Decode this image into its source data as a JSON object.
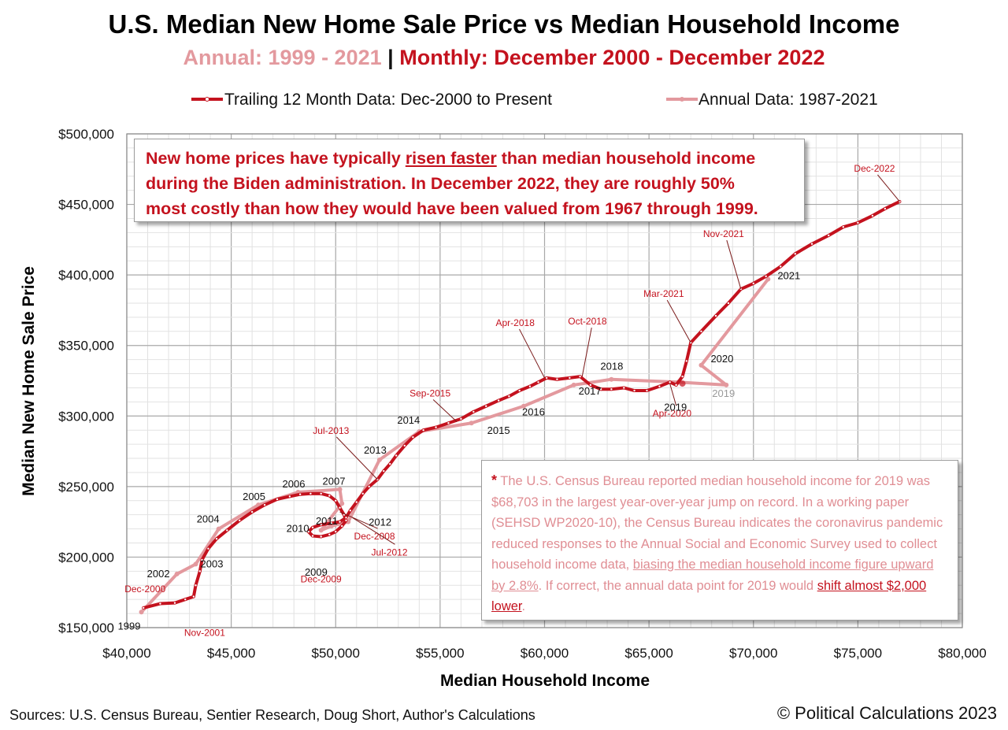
{
  "chart_data": {
    "type": "line",
    "title": "U.S. Median New Home Sale Price vs Median Household Income",
    "subtitle": {
      "annual": "Annual: 1999 - 2021",
      "separator": "|",
      "monthly": "Monthly: December 2000 - December 2022"
    },
    "xlabel": "Median Household Income",
    "ylabel": "Median New Home Sale Price",
    "xlim": [
      40000,
      80000
    ],
    "ylim": [
      150000,
      500000
    ],
    "x_ticks": [
      "$40,000",
      "$45,000",
      "$50,000",
      "$55,000",
      "$60,000",
      "$65,000",
      "$70,000",
      "$75,000",
      "$80,000"
    ],
    "y_ticks": [
      "$150,000",
      "$200,000",
      "$250,000",
      "$300,000",
      "$350,000",
      "$400,000",
      "$450,000",
      "$500,000"
    ],
    "grid": true,
    "legend_position": "top-center",
    "colors": {
      "monthly": "#c4121e",
      "annual": "#e3999e",
      "grid": "#c8c8c8"
    },
    "series": [
      {
        "name": "Trailing 12 Month Data: Dec-2000 to Present",
        "points": [
          [
            40800,
            164000
          ],
          [
            41600,
            167000
          ],
          [
            42300,
            167500
          ],
          [
            42800,
            170000
          ],
          [
            43200,
            172000
          ],
          [
            43300,
            180000
          ],
          [
            43500,
            190000
          ],
          [
            43600,
            198000
          ],
          [
            43900,
            206000
          ],
          [
            44300,
            213000
          ],
          [
            44800,
            219000
          ],
          [
            45400,
            226000
          ],
          [
            46000,
            232000
          ],
          [
            46600,
            237000
          ],
          [
            47200,
            241000
          ],
          [
            47800,
            243000
          ],
          [
            48300,
            244500
          ],
          [
            48800,
            245000
          ],
          [
            49300,
            245000
          ],
          [
            49700,
            243500
          ],
          [
            50000,
            240000
          ],
          [
            50200,
            235000
          ],
          [
            50400,
            230000
          ],
          [
            50500,
            226000
          ],
          [
            50300,
            222000
          ],
          [
            50000,
            218000
          ],
          [
            49700,
            216000
          ],
          [
            49300,
            214500
          ],
          [
            48900,
            215000
          ],
          [
            48700,
            218000
          ],
          [
            48900,
            221000
          ],
          [
            49300,
            223000
          ],
          [
            49800,
            224000
          ],
          [
            50200,
            225000
          ],
          [
            50500,
            228000
          ],
          [
            50700,
            233000
          ],
          [
            51000,
            239000
          ],
          [
            51300,
            245000
          ],
          [
            51600,
            250000
          ],
          [
            52000,
            255000
          ],
          [
            52300,
            261000
          ],
          [
            52600,
            266000
          ],
          [
            52900,
            272000
          ],
          [
            53300,
            279000
          ],
          [
            53700,
            285000
          ],
          [
            54200,
            290000
          ],
          [
            54800,
            292000
          ],
          [
            55400,
            295000
          ],
          [
            56000,
            298000
          ],
          [
            56600,
            303000
          ],
          [
            57200,
            307000
          ],
          [
            57800,
            311000
          ],
          [
            58300,
            314000
          ],
          [
            58800,
            318000
          ],
          [
            59300,
            321000
          ],
          [
            59700,
            324000
          ],
          [
            60100,
            327000
          ],
          [
            60600,
            326000
          ],
          [
            61200,
            327000
          ],
          [
            61700,
            328000
          ],
          [
            62200,
            322000
          ],
          [
            62700,
            319000
          ],
          [
            63200,
            319000
          ],
          [
            63800,
            320000
          ],
          [
            64300,
            318000
          ],
          [
            64900,
            318000
          ],
          [
            65500,
            321000
          ],
          [
            66000,
            324000
          ],
          [
            66300,
            322000
          ],
          [
            66600,
            328000
          ],
          [
            66800,
            339000
          ],
          [
            67000,
            352000
          ],
          [
            67500,
            360000
          ],
          [
            68200,
            371000
          ],
          [
            68800,
            380000
          ],
          [
            69400,
            390000
          ],
          [
            70000,
            394000
          ],
          [
            70600,
            399000
          ],
          [
            71300,
            406000
          ],
          [
            72000,
            415000
          ],
          [
            72800,
            422000
          ],
          [
            73600,
            428000
          ],
          [
            74300,
            434000
          ],
          [
            75000,
            437000
          ],
          [
            75700,
            442000
          ],
          [
            76300,
            447000
          ],
          [
            77000,
            452000
          ]
        ]
      },
      {
        "name": "Annual Data: 1987-2021",
        "points": [
          [
            40700,
            161000
          ],
          [
            42400,
            188000
          ],
          [
            43300,
            195000
          ],
          [
            44400,
            220000
          ],
          [
            46300,
            237000
          ],
          [
            48200,
            246000
          ],
          [
            50200,
            248000
          ],
          [
            50300,
            238000
          ],
          [
            49300,
            219000
          ],
          [
            49800,
            222000
          ],
          [
            50600,
            225000
          ],
          [
            52100,
            269000
          ],
          [
            54000,
            289000
          ],
          [
            56500,
            295000
          ],
          [
            59000,
            307000
          ],
          [
            61400,
            322000
          ],
          [
            63200,
            326000
          ],
          [
            66400,
            324000
          ],
          [
            68700,
            322000
          ],
          [
            67500,
            336000
          ],
          [
            70700,
            397000
          ]
        ]
      }
    ],
    "annotations_monthly": [
      {
        "label": "Dec-2000",
        "x": 40800,
        "y": 164000
      },
      {
        "label": "Nov-2001",
        "x": 43200,
        "y": 172000
      },
      {
        "label": "Dec-2008",
        "x": 50200,
        "y": 232000
      },
      {
        "label": "Jul-2012",
        "x": 50800,
        "y": 228000
      },
      {
        "label": "Dec-2009",
        "x": 49300,
        "y": 214500
      },
      {
        "label": "Jul-2013",
        "x": 52000,
        "y": 255000
      },
      {
        "label": "Sep-2015",
        "x": 55800,
        "y": 296000
      },
      {
        "label": "Apr-2018",
        "x": 60000,
        "y": 327000
      },
      {
        "label": "Oct-2018",
        "x": 61800,
        "y": 328000
      },
      {
        "label": "Apr-2020",
        "x": 66000,
        "y": 323000
      },
      {
        "label": "Mar-2021",
        "x": 67000,
        "y": 352000
      },
      {
        "label": "Nov-2021",
        "x": 69400,
        "y": 390000
      },
      {
        "label": "Dec-2022",
        "x": 77000,
        "y": 452000
      }
    ],
    "annotations_annual": [
      {
        "label": "1999",
        "x": 40700,
        "y": 161000
      },
      {
        "label": "2002",
        "x": 42400,
        "y": 188000
      },
      {
        "label": "2003",
        "x": 43300,
        "y": 195000
      },
      {
        "label": "2004",
        "x": 44400,
        "y": 220000
      },
      {
        "label": "2005",
        "x": 46300,
        "y": 237000
      },
      {
        "label": "2006",
        "x": 48200,
        "y": 246000
      },
      {
        "label": "2007",
        "x": 50200,
        "y": 248000
      },
      {
        "label": "2010",
        "x": 49300,
        "y": 219000
      },
      {
        "label": "2011",
        "x": 49800,
        "y": 222000
      },
      {
        "label": "2012",
        "x": 50600,
        "y": 228000
      },
      {
        "label": "2009",
        "x": 49800,
        "y": 216000
      },
      {
        "label": "2013",
        "x": 52100,
        "y": 269000
      },
      {
        "label": "2014",
        "x": 54000,
        "y": 289000
      },
      {
        "label": "2015",
        "x": 56500,
        "y": 295000
      },
      {
        "label": "2016",
        "x": 59000,
        "y": 307000
      },
      {
        "label": "2017",
        "x": 61400,
        "y": 322000
      },
      {
        "label": "2018",
        "x": 63200,
        "y": 326000
      },
      {
        "label": "2019",
        "x": 66400,
        "y": 324000
      },
      {
        "label": "2020",
        "x": 67500,
        "y": 336000
      },
      {
        "label": "2021",
        "x": 70700,
        "y": 397000
      }
    ],
    "annotation_revised": {
      "label": "2019",
      "x": 68700,
      "y": 322000
    }
  },
  "callout_top": {
    "line1_pre": "New home prices have typically ",
    "line1_underlined": "risen faster",
    "line1_post": " than median household income",
    "line2": "during the Biden administration.  In December 2022, they are roughly 50%",
    "line3": "most costly than how they would have been valued from 1967 through 1999."
  },
  "callout_note": {
    "star": "*",
    "text1": " The U.S. Census Bureau reported median household income for 2019  was $68,703  in the largest year-over-year jump on record.  In a working paper (SEHSD WP2020-10),  the Census Bureau indicates the coronavirus pandemic reduced responses to the Annual Social and Economic Survey used to collect household income data, ",
    "underlined1": "biasing the median household income figure upward by 2.8%",
    "text2": ".  If correct, the annual data point for 2019  would ",
    "underlined2": "shift almost $2,000 lower",
    "text3": "."
  },
  "footer": {
    "sources": "Sources: U.S. Census Bureau, Sentier Research, Doug Short,  Author's Calculations",
    "copyright": "© Political Calculations 2023"
  }
}
